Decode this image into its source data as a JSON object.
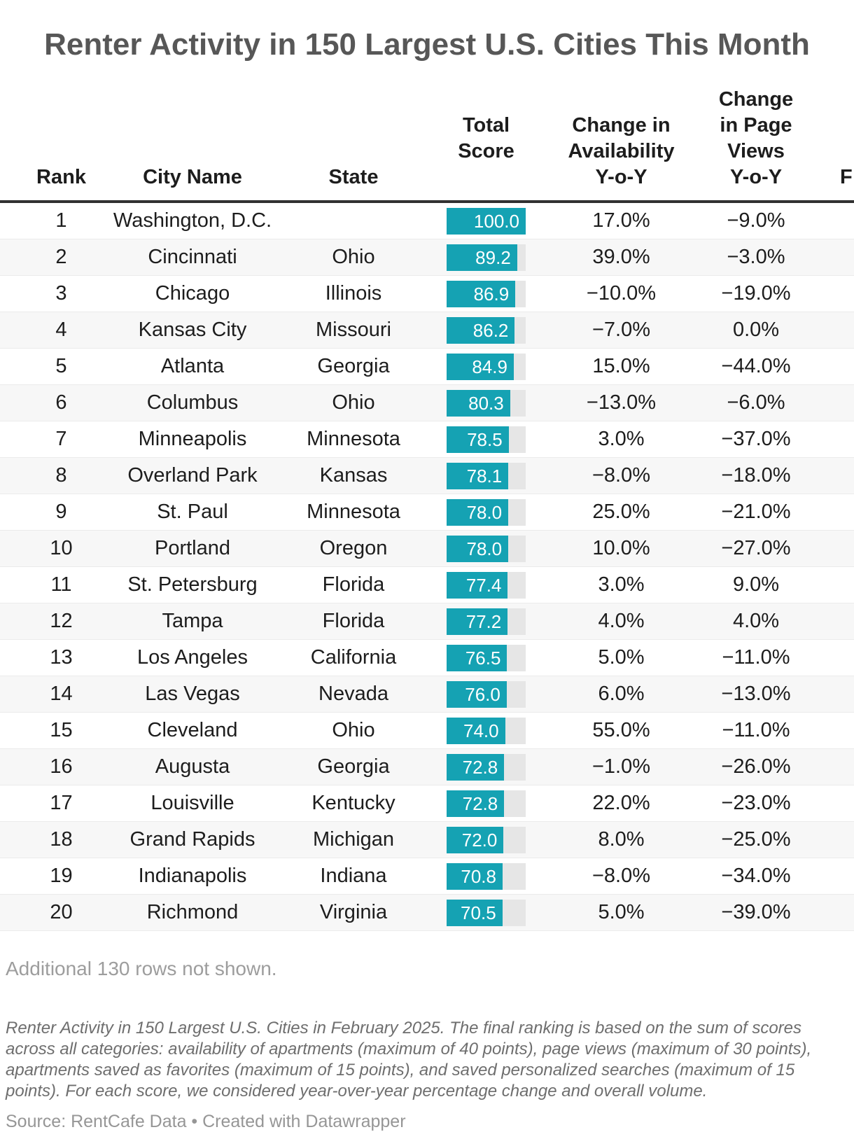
{
  "title": "Renter Activity in 150 Largest U.S. Cities This Month",
  "table": {
    "columns": [
      {
        "label": "Rank"
      },
      {
        "label": "City Name"
      },
      {
        "label": "State"
      },
      {
        "label": "Total\nScore"
      },
      {
        "label": "Change in\nAvailability\nY-o-Y"
      },
      {
        "label": "Change\nin Page\nViews\nY-o-Y"
      },
      {
        "label": "F"
      }
    ],
    "score_max": 100,
    "rows": [
      {
        "rank": 1,
        "city": "Washington, D.C.",
        "state": "",
        "score": 100.0,
        "availability": "17.0%",
        "page_views": "−9.0%"
      },
      {
        "rank": 2,
        "city": "Cincinnati",
        "state": "Ohio",
        "score": 89.2,
        "availability": "39.0%",
        "page_views": "−3.0%"
      },
      {
        "rank": 3,
        "city": "Chicago",
        "state": "Illinois",
        "score": 86.9,
        "availability": "−10.0%",
        "page_views": "−19.0%"
      },
      {
        "rank": 4,
        "city": "Kansas City",
        "state": "Missouri",
        "score": 86.2,
        "availability": "−7.0%",
        "page_views": "0.0%"
      },
      {
        "rank": 5,
        "city": "Atlanta",
        "state": "Georgia",
        "score": 84.9,
        "availability": "15.0%",
        "page_views": "−44.0%"
      },
      {
        "rank": 6,
        "city": "Columbus",
        "state": "Ohio",
        "score": 80.3,
        "availability": "−13.0%",
        "page_views": "−6.0%"
      },
      {
        "rank": 7,
        "city": "Minneapolis",
        "state": "Minnesota",
        "score": 78.5,
        "availability": "3.0%",
        "page_views": "−37.0%"
      },
      {
        "rank": 8,
        "city": "Overland Park",
        "state": "Kansas",
        "score": 78.1,
        "availability": "−8.0%",
        "page_views": "−18.0%"
      },
      {
        "rank": 9,
        "city": "St. Paul",
        "state": "Minnesota",
        "score": 78.0,
        "availability": "25.0%",
        "page_views": "−21.0%"
      },
      {
        "rank": 10,
        "city": "Portland",
        "state": "Oregon",
        "score": 78.0,
        "availability": "10.0%",
        "page_views": "−27.0%"
      },
      {
        "rank": 11,
        "city": "St. Petersburg",
        "state": "Florida",
        "score": 77.4,
        "availability": "3.0%",
        "page_views": "9.0%"
      },
      {
        "rank": 12,
        "city": "Tampa",
        "state": "Florida",
        "score": 77.2,
        "availability": "4.0%",
        "page_views": "4.0%"
      },
      {
        "rank": 13,
        "city": "Los Angeles",
        "state": "California",
        "score": 76.5,
        "availability": "5.0%",
        "page_views": "−11.0%"
      },
      {
        "rank": 14,
        "city": "Las Vegas",
        "state": "Nevada",
        "score": 76.0,
        "availability": "6.0%",
        "page_views": "−13.0%"
      },
      {
        "rank": 15,
        "city": "Cleveland",
        "state": "Ohio",
        "score": 74.0,
        "availability": "55.0%",
        "page_views": "−11.0%"
      },
      {
        "rank": 16,
        "city": "Augusta",
        "state": "Georgia",
        "score": 72.8,
        "availability": "−1.0%",
        "page_views": "−26.0%"
      },
      {
        "rank": 17,
        "city": "Louisville",
        "state": "Kentucky",
        "score": 72.8,
        "availability": "22.0%",
        "page_views": "−23.0%"
      },
      {
        "rank": 18,
        "city": "Grand Rapids",
        "state": "Michigan",
        "score": 72.0,
        "availability": "8.0%",
        "page_views": "−25.0%"
      },
      {
        "rank": 19,
        "city": "Indianapolis",
        "state": "Indiana",
        "score": 70.8,
        "availability": "−8.0%",
        "page_views": "−34.0%"
      },
      {
        "rank": 20,
        "city": "Richmond",
        "state": "Virginia",
        "score": 70.5,
        "availability": "5.0%",
        "page_views": "−39.0%"
      }
    ]
  },
  "notes": {
    "additional_rows": "Additional 130 rows not shown.",
    "description": "Renter Activity in 150 Largest U.S. Cities in February 2025. The final ranking is based on the sum of scores across all categories: availability of apartments (maximum of 40 points), page views (maximum of 30 points), apartments saved as favorites (maximum of 15 points), and saved personalized searches (maximum of 15 points). For each score, we considered year-over-year percentage change and overall volume.",
    "source": "Source: RentCafe Data • Created with Datawrapper"
  },
  "colors": {
    "bar": "#15a2b3",
    "bar_track": "#e6e6e6",
    "row_alt": "#f7f7f7",
    "header_border": "#313131",
    "title_text": "#575757"
  },
  "chart_data": {
    "type": "table",
    "title": "Renter Activity in 150 Largest U.S. Cities This Month",
    "columns": [
      "Rank",
      "City Name",
      "State",
      "Total Score",
      "Change in Availability Y-o-Y",
      "Change in Page Views Y-o-Y"
    ],
    "score_axis": {
      "min": 0,
      "max": 100,
      "rendered_as": "bar"
    },
    "rows": [
      [
        1,
        "Washington, D.C.",
        "",
        100.0,
        "17.0%",
        "−9.0%"
      ],
      [
        2,
        "Cincinnati",
        "Ohio",
        89.2,
        "39.0%",
        "−3.0%"
      ],
      [
        3,
        "Chicago",
        "Illinois",
        86.9,
        "−10.0%",
        "−19.0%"
      ],
      [
        4,
        "Kansas City",
        "Missouri",
        86.2,
        "−7.0%",
        "0.0%"
      ],
      [
        5,
        "Atlanta",
        "Georgia",
        84.9,
        "15.0%",
        "−44.0%"
      ],
      [
        6,
        "Columbus",
        "Ohio",
        80.3,
        "−13.0%",
        "−6.0%"
      ],
      [
        7,
        "Minneapolis",
        "Minnesota",
        78.5,
        "3.0%",
        "−37.0%"
      ],
      [
        8,
        "Overland Park",
        "Kansas",
        78.1,
        "−8.0%",
        "−18.0%"
      ],
      [
        9,
        "St. Paul",
        "Minnesota",
        78.0,
        "25.0%",
        "−21.0%"
      ],
      [
        10,
        "Portland",
        "Oregon",
        78.0,
        "10.0%",
        "−27.0%"
      ],
      [
        11,
        "St. Petersburg",
        "Florida",
        77.4,
        "3.0%",
        "9.0%"
      ],
      [
        12,
        "Tampa",
        "Florida",
        77.2,
        "4.0%",
        "4.0%"
      ],
      [
        13,
        "Los Angeles",
        "California",
        76.5,
        "5.0%",
        "−11.0%"
      ],
      [
        14,
        "Las Vegas",
        "Nevada",
        76.0,
        "6.0%",
        "−13.0%"
      ],
      [
        15,
        "Cleveland",
        "Ohio",
        74.0,
        "55.0%",
        "−11.0%"
      ],
      [
        16,
        "Augusta",
        "Georgia",
        72.8,
        "−1.0%",
        "−26.0%"
      ],
      [
        17,
        "Louisville",
        "Kentucky",
        72.8,
        "22.0%",
        "−23.0%"
      ],
      [
        18,
        "Grand Rapids",
        "Michigan",
        72.0,
        "8.0%",
        "−25.0%"
      ],
      [
        19,
        "Indianapolis",
        "Indiana",
        70.8,
        "−8.0%",
        "−34.0%"
      ],
      [
        20,
        "Richmond",
        "Virginia",
        70.5,
        "5.0%",
        "−39.0%"
      ]
    ],
    "notes": "Additional 130 rows not shown.",
    "source": "Source: RentCafe Data • Created with Datawrapper"
  }
}
